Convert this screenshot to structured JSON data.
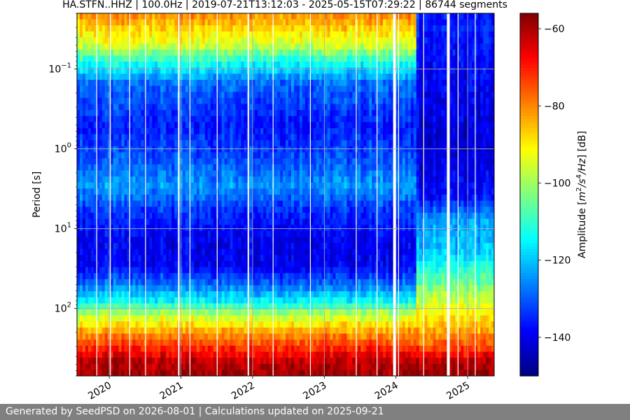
{
  "chart_data": {
    "type": "heatmap",
    "title": "HA.STFN..HHZ | 100.0Hz | 2019-07-21T13:12:03 - 2025-05-15T07:29:22 | 86744 segments",
    "ylabel": "Period [s]",
    "y_scale": "log",
    "y_inverted": true,
    "ylim": [
      0.02,
      700
    ],
    "y_ticks": [
      {
        "value": 0.1,
        "base": "10",
        "exp": "−1"
      },
      {
        "value": 1,
        "base": "10",
        "exp": "0"
      },
      {
        "value": 10,
        "base": "10",
        "exp": "1"
      },
      {
        "value": 100,
        "base": "10",
        "exp": "2"
      }
    ],
    "xlim": [
      2019.55,
      2025.37
    ],
    "x_ticks": [
      {
        "value": 2020.0,
        "label": "2020"
      },
      {
        "value": 2021.0,
        "label": "2021"
      },
      {
        "value": 2022.0,
        "label": "2022"
      },
      {
        "value": 2023.0,
        "label": "2023"
      },
      {
        "value": 2024.0,
        "label": "2024"
      },
      {
        "value": 2025.0,
        "label": "2025"
      }
    ],
    "colorbar": {
      "label_prefix": "Amplitude [",
      "label_unit_m": "m",
      "label_exp1": "2",
      "label_unit_s": "/s",
      "label_exp2": "4",
      "label_unit_hz": "/Hz",
      "label_suffix": "] [dB]",
      "vmin": -150,
      "vmax": -56,
      "ticks": [
        {
          "value": -60,
          "label": "−60"
        },
        {
          "value": -80,
          "label": "−80"
        },
        {
          "value": -100,
          "label": "−100"
        },
        {
          "value": -120,
          "label": "−120"
        },
        {
          "value": -140,
          "label": "−140"
        }
      ],
      "colormap": "jet"
    },
    "grid": true,
    "period_profiles": [
      {
        "name": "until 2024.3",
        "t_start": 2019.55,
        "t_end": 2024.3,
        "points": [
          [
            0.02,
            -80
          ],
          [
            0.05,
            -95
          ],
          [
            0.08,
            -112
          ],
          [
            0.15,
            -128
          ],
          [
            0.5,
            -136
          ],
          [
            1.5,
            -130
          ],
          [
            3,
            -124
          ],
          [
            6,
            -134
          ],
          [
            15,
            -140
          ],
          [
            30,
            -139
          ],
          [
            50,
            -128
          ],
          [
            80,
            -115
          ],
          [
            120,
            -98
          ],
          [
            200,
            -82
          ],
          [
            300,
            -72
          ],
          [
            450,
            -62
          ],
          [
            700,
            -58
          ]
        ]
      },
      {
        "name": "after 2024.3",
        "t_start": 2024.3,
        "t_end": 2025.37,
        "points": [
          [
            0.02,
            -136
          ],
          [
            0.2,
            -140
          ],
          [
            1,
            -143
          ],
          [
            4,
            -138
          ],
          [
            8,
            -124
          ],
          [
            20,
            -120
          ],
          [
            40,
            -108
          ],
          [
            80,
            -97
          ],
          [
            150,
            -88
          ],
          [
            300,
            -75
          ],
          [
            450,
            -63
          ],
          [
            700,
            -58
          ]
        ]
      }
    ],
    "data_gaps": [
      [
        2019.82,
        2019.83
      ],
      [
        2020.01,
        2020.02
      ],
      [
        2020.28,
        2020.29
      ],
      [
        2020.5,
        2020.51
      ],
      [
        2020.96,
        2020.98
      ],
      [
        2021.12,
        2021.125
      ],
      [
        2021.5,
        2021.51
      ],
      [
        2021.93,
        2021.95
      ],
      [
        2022.28,
        2022.29
      ],
      [
        2022.8,
        2022.81
      ],
      [
        2023.44,
        2023.45
      ],
      [
        2023.73,
        2023.74
      ],
      [
        2023.96,
        2024.0
      ],
      [
        2024.03,
        2024.04
      ],
      [
        2024.38,
        2024.39
      ],
      [
        2024.71,
        2024.75
      ],
      [
        2024.86,
        2024.87
      ],
      [
        2025.1,
        2025.11
      ]
    ]
  },
  "footer": {
    "text": "Generated by SeedPSD on 2026-08-01 | Calculations updated on 2025-09-21"
  }
}
